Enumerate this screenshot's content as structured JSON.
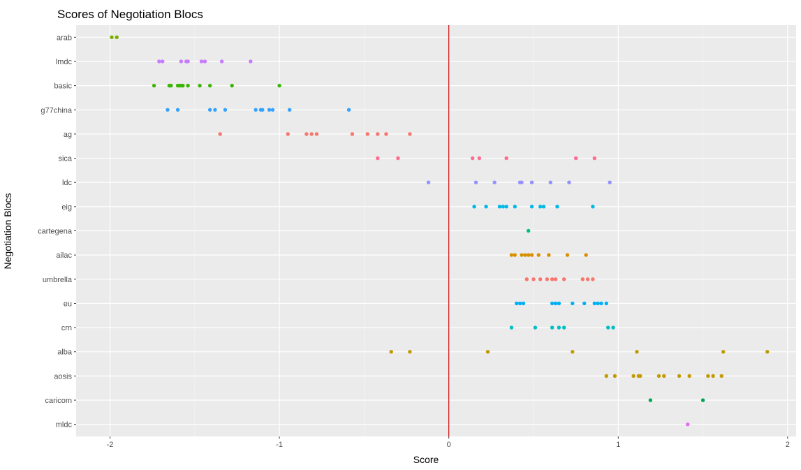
{
  "chart_data": {
    "type": "scatter",
    "title": "Scores of Negotiation Blocs",
    "xlabel": "Score",
    "ylabel": "Negotiation Blocs",
    "xlim": [
      -2.2,
      2.05
    ],
    "x_ticks": [
      -2,
      -1,
      0,
      1,
      2
    ],
    "x_tick_labels": [
      "-2",
      "-1",
      "0",
      "1",
      "2"
    ],
    "reference_line": {
      "x": 0,
      "color": "#cc0000"
    },
    "grid": true,
    "legend": "none",
    "categories": [
      "arab",
      "lmdc",
      "basic",
      "g77china",
      "ag",
      "sica",
      "ldc",
      "eig",
      "cartegena",
      "ailac",
      "umbrella",
      "eu",
      "crn",
      "alba",
      "aosis",
      "caricom",
      "mldc"
    ],
    "series": [
      {
        "name": "arab",
        "color": "#7CAE00",
        "values": [
          -1.99,
          -1.96
        ]
      },
      {
        "name": "lmdc",
        "color": "#C77CFF",
        "values": [
          -1.71,
          -1.69,
          -1.58,
          -1.55,
          -1.54,
          -1.46,
          -1.44,
          -1.34,
          -1.17
        ]
      },
      {
        "name": "basic",
        "color": "#39B600",
        "values": [
          -1.74,
          -1.65,
          -1.64,
          -1.6,
          -1.59,
          -1.58,
          -1.57,
          -1.54,
          -1.47,
          -1.41,
          -1.28,
          -1.0
        ]
      },
      {
        "name": "g77china",
        "color": "#35A2FF",
        "values": [
          -1.66,
          -1.6,
          -1.41,
          -1.38,
          -1.32,
          -1.14,
          -1.11,
          -1.1,
          -1.06,
          -1.04,
          -0.94,
          -0.59
        ]
      },
      {
        "name": "ag",
        "color": "#F8766D",
        "values": [
          -1.35,
          -0.95,
          -0.84,
          -0.81,
          -0.78,
          -0.57,
          -0.48,
          -0.42,
          -0.37,
          -0.23
        ]
      },
      {
        "name": "sica",
        "color": "#FF6C91",
        "values": [
          -0.42,
          -0.3,
          0.14,
          0.18,
          0.34,
          0.75,
          0.86
        ]
      },
      {
        "name": "ldc",
        "color": "#9590FF",
        "values": [
          -0.12,
          0.16,
          0.27,
          0.42,
          0.43,
          0.49,
          0.6,
          0.71,
          0.95
        ]
      },
      {
        "name": "eig",
        "color": "#00B8E7",
        "values": [
          0.15,
          0.22,
          0.3,
          0.32,
          0.34,
          0.39,
          0.49,
          0.54,
          0.56,
          0.64,
          0.85
        ]
      },
      {
        "name": "cartegena",
        "color": "#00BF7D",
        "values": [
          0.47
        ]
      },
      {
        "name": "ailac",
        "color": "#D89000",
        "values": [
          0.37,
          0.39,
          0.43,
          0.45,
          0.47,
          0.49,
          0.53,
          0.59,
          0.7,
          0.81
        ]
      },
      {
        "name": "umbrella",
        "color": "#F8766D",
        "values": [
          0.46,
          0.5,
          0.54,
          0.58,
          0.61,
          0.63,
          0.68,
          0.79,
          0.82,
          0.85
        ]
      },
      {
        "name": "eu",
        "color": "#00B0F6",
        "values": [
          0.4,
          0.42,
          0.44,
          0.61,
          0.63,
          0.65,
          0.73,
          0.8,
          0.86,
          0.88,
          0.9,
          0.93
        ]
      },
      {
        "name": "crn",
        "color": "#00BFC4",
        "values": [
          0.37,
          0.51,
          0.61,
          0.65,
          0.68,
          0.94,
          0.97
        ]
      },
      {
        "name": "alba",
        "color": "#C09B00",
        "values": [
          -0.34,
          -0.23,
          0.23,
          0.73,
          1.11,
          1.62,
          1.88
        ]
      },
      {
        "name": "aosis",
        "color": "#C49A00",
        "values": [
          0.93,
          0.98,
          1.09,
          1.12,
          1.13,
          1.24,
          1.27,
          1.36,
          1.42,
          1.53,
          1.56,
          1.61
        ]
      },
      {
        "name": "caricom",
        "color": "#00A854",
        "values": [
          1.19,
          1.5
        ]
      },
      {
        "name": "mldc",
        "color": "#E76BF3",
        "values": [
          1.41
        ]
      }
    ]
  }
}
